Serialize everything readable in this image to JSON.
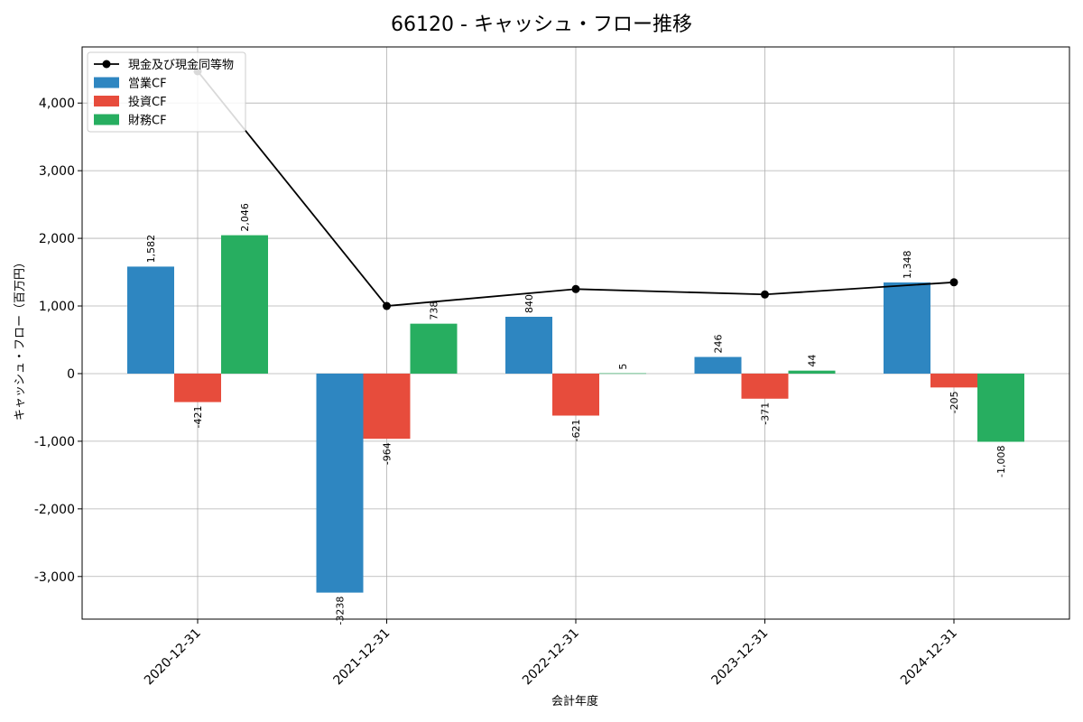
{
  "chart_data": {
    "type": "bar",
    "title": "66120 - キャッシュ・フロー推移",
    "xlabel": "会計年度",
    "ylabel": "キャッシュ・フロー（百万円）",
    "categories": [
      "2020-12-31",
      "2021-12-31",
      "2022-12-31",
      "2023-12-31",
      "2024-12-31"
    ],
    "ylim": [
      -3630,
      4830
    ],
    "yticks": [
      -3000,
      -2000,
      -1000,
      0,
      1000,
      2000,
      3000,
      4000
    ],
    "ytick_labels": [
      "-3,000",
      "-2,000",
      "-1,000",
      "0",
      "1,000",
      "2,000",
      "3,000",
      "4,000"
    ],
    "grid": true,
    "legend_position": "top-left",
    "series": [
      {
        "name": "営業CF",
        "kind": "bar",
        "color": "#2e86c1",
        "values": [
          1582,
          -3238,
          840,
          246,
          1348
        ],
        "labels": [
          "1,582",
          "-3238",
          "840",
          "246",
          "1,348"
        ]
      },
      {
        "name": "投資CF",
        "kind": "bar",
        "color": "#e74c3c",
        "values": [
          -421,
          -964,
          -621,
          -371,
          -205
        ],
        "labels": [
          "-421",
          "-964",
          "-621",
          "-371",
          "-205"
        ]
      },
      {
        "name": "財務CF",
        "kind": "bar",
        "color": "#27ae60",
        "values": [
          2046,
          738,
          5,
          44,
          -1008
        ],
        "labels": [
          "2,046",
          "738",
          "5",
          "44",
          "-1,008"
        ]
      },
      {
        "name": "現金及び現金同等物",
        "kind": "line",
        "color": "#000000",
        "values": [
          4470,
          1000,
          1250,
          1170,
          1350
        ]
      }
    ]
  }
}
